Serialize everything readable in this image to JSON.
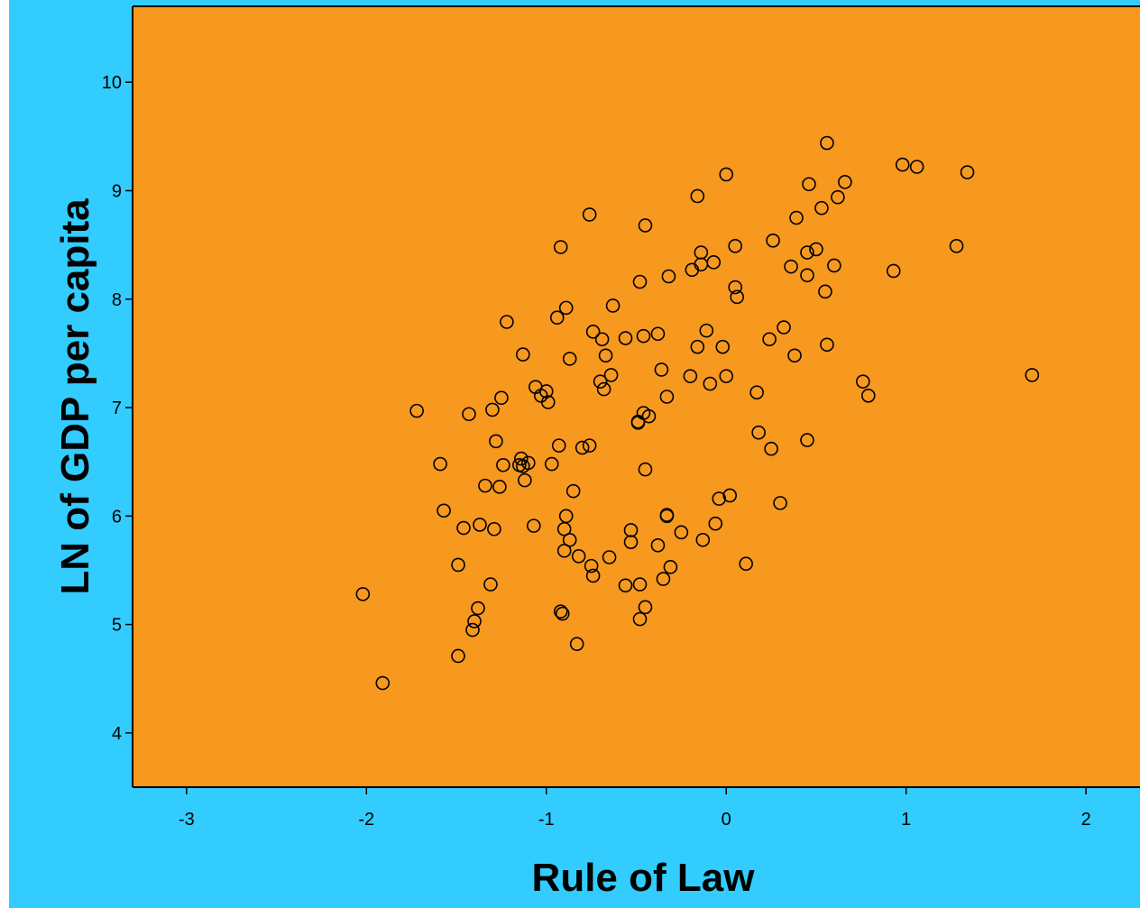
{
  "colors": {
    "plot_background": "#F7981F",
    "outer_background": "#33CCFF",
    "marker": "#000000"
  },
  "chart_data": {
    "type": "scatter",
    "xlabel": "Rule of Law",
    "ylabel": "LN of GDP per capita",
    "xlim": [
      -3.3,
      2.3
    ],
    "ylim": [
      3.5,
      10.7
    ],
    "xticks": [
      -3,
      -2,
      -1,
      0,
      1,
      2
    ],
    "yticks": [
      4,
      5,
      6,
      7,
      8,
      9,
      10
    ],
    "grid": false,
    "marker": "open-circle",
    "points": [
      [
        -2.02,
        5.28
      ],
      [
        -1.91,
        4.46
      ],
      [
        -1.72,
        6.97
      ],
      [
        -1.59,
        6.48
      ],
      [
        -1.57,
        6.05
      ],
      [
        -1.49,
        5.55
      ],
      [
        -1.49,
        4.71
      ],
      [
        -1.46,
        5.89
      ],
      [
        -1.43,
        6.94
      ],
      [
        -1.41,
        4.95
      ],
      [
        -1.4,
        5.03
      ],
      [
        -1.38,
        5.15
      ],
      [
        -1.37,
        5.92
      ],
      [
        -1.34,
        6.28
      ],
      [
        -1.31,
        5.37
      ],
      [
        -1.3,
        6.98
      ],
      [
        -1.29,
        5.88
      ],
      [
        -1.28,
        6.69
      ],
      [
        -1.26,
        6.27
      ],
      [
        -1.25,
        7.09
      ],
      [
        -1.24,
        6.47
      ],
      [
        -1.22,
        7.79
      ],
      [
        -1.15,
        6.47
      ],
      [
        -1.14,
        6.53
      ],
      [
        -1.13,
        7.49
      ],
      [
        -1.13,
        6.46
      ],
      [
        -1.12,
        6.33
      ],
      [
        -1.1,
        6.49
      ],
      [
        -1.07,
        5.91
      ],
      [
        -1.06,
        7.19
      ],
      [
        -1.03,
        7.11
      ],
      [
        -1.0,
        7.15
      ],
      [
        -0.99,
        7.05
      ],
      [
        -0.97,
        6.48
      ],
      [
        -0.94,
        7.83
      ],
      [
        -0.93,
        6.65
      ],
      [
        -0.92,
        8.48
      ],
      [
        -0.92,
        5.12
      ],
      [
        -0.91,
        5.1
      ],
      [
        -0.9,
        5.88
      ],
      [
        -0.9,
        5.68
      ],
      [
        -0.89,
        7.92
      ],
      [
        -0.89,
        6.0
      ],
      [
        -0.87,
        7.45
      ],
      [
        -0.87,
        5.78
      ],
      [
        -0.85,
        6.23
      ],
      [
        -0.83,
        4.82
      ],
      [
        -0.82,
        5.63
      ],
      [
        -0.8,
        6.63
      ],
      [
        -0.76,
        8.78
      ],
      [
        -0.76,
        6.65
      ],
      [
        -0.75,
        5.54
      ],
      [
        -0.74,
        5.45
      ],
      [
        -0.74,
        7.7
      ],
      [
        -0.7,
        7.24
      ],
      [
        -0.69,
        7.63
      ],
      [
        -0.68,
        7.17
      ],
      [
        -0.67,
        7.48
      ],
      [
        -0.65,
        5.62
      ],
      [
        -0.64,
        7.3
      ],
      [
        -0.63,
        7.94
      ],
      [
        -0.56,
        7.64
      ],
      [
        -0.56,
        5.36
      ],
      [
        -0.53,
        5.87
      ],
      [
        -0.53,
        5.76
      ],
      [
        -0.49,
        6.87
      ],
      [
        -0.49,
        6.86
      ],
      [
        -0.48,
        8.16
      ],
      [
        -0.48,
        5.37
      ],
      [
        -0.48,
        5.05
      ],
      [
        -0.46,
        6.95
      ],
      [
        -0.46,
        7.66
      ],
      [
        -0.45,
        6.43
      ],
      [
        -0.45,
        8.68
      ],
      [
        -0.45,
        5.16
      ],
      [
        -0.43,
        6.92
      ],
      [
        -0.38,
        7.68
      ],
      [
        -0.38,
        5.73
      ],
      [
        -0.36,
        7.35
      ],
      [
        -0.35,
        5.42
      ],
      [
        -0.33,
        6.01
      ],
      [
        -0.33,
        6.0
      ],
      [
        -0.33,
        7.1
      ],
      [
        -0.32,
        8.21
      ],
      [
        -0.31,
        5.53
      ],
      [
        -0.25,
        5.85
      ],
      [
        -0.2,
        7.29
      ],
      [
        -0.19,
        8.27
      ],
      [
        -0.16,
        8.95
      ],
      [
        -0.16,
        7.56
      ],
      [
        -0.14,
        8.43
      ],
      [
        -0.14,
        8.32
      ],
      [
        -0.13,
        5.78
      ],
      [
        -0.11,
        7.71
      ],
      [
        -0.09,
        7.22
      ],
      [
        -0.07,
        8.34
      ],
      [
        -0.06,
        5.93
      ],
      [
        -0.04,
        6.16
      ],
      [
        -0.02,
        7.56
      ],
      [
        0.0,
        7.29
      ],
      [
        0.0,
        9.15
      ],
      [
        0.02,
        6.19
      ],
      [
        0.05,
        8.49
      ],
      [
        0.05,
        8.11
      ],
      [
        0.06,
        8.02
      ],
      [
        0.11,
        5.56
      ],
      [
        0.17,
        7.14
      ],
      [
        0.18,
        6.77
      ],
      [
        0.24,
        7.63
      ],
      [
        0.25,
        6.62
      ],
      [
        0.26,
        8.54
      ],
      [
        0.3,
        6.12
      ],
      [
        0.32,
        7.74
      ],
      [
        0.36,
        8.3
      ],
      [
        0.38,
        7.48
      ],
      [
        0.39,
        8.75
      ],
      [
        0.45,
        6.7
      ],
      [
        0.45,
        8.22
      ],
      [
        0.45,
        8.43
      ],
      [
        0.46,
        9.06
      ],
      [
        0.5,
        8.46
      ],
      [
        0.53,
        8.84
      ],
      [
        0.55,
        8.07
      ],
      [
        0.56,
        9.44
      ],
      [
        0.56,
        7.58
      ],
      [
        0.6,
        8.31
      ],
      [
        0.62,
        8.94
      ],
      [
        0.66,
        9.08
      ],
      [
        0.76,
        7.24
      ],
      [
        0.79,
        7.11
      ],
      [
        0.93,
        8.26
      ],
      [
        0.98,
        9.24
      ],
      [
        1.06,
        9.22
      ],
      [
        1.28,
        8.49
      ],
      [
        1.34,
        9.17
      ],
      [
        1.7,
        7.3
      ]
    ]
  }
}
